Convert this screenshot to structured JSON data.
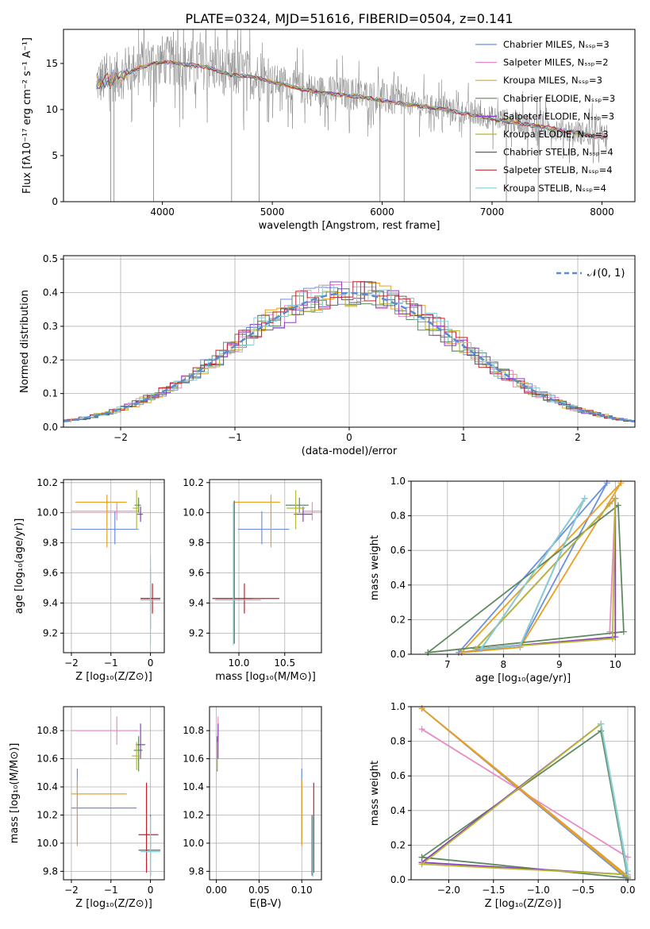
{
  "figure_title": "PLATE=0324, MJD=51616, FIBERID=0504, z=0.141",
  "series_colors": [
    "#6d8fe0",
    "#e88cc2",
    "#e8a020",
    "#5f8a5f",
    "#8a3fc4",
    "#b8b830",
    "#606060",
    "#c0202a",
    "#87cfd8"
  ],
  "chart_data": [
    {
      "id": "spectrum",
      "type": "line",
      "title": "PLATE=0324, MJD=51616, FIBERID=0504, z=0.141",
      "xlabel": "wavelength [Angstrom, rest frame]",
      "ylabel": "Flux [fλ10⁻¹⁷ erg cm⁻² s⁻¹ A⁻¹]",
      "xlim": [
        3100,
        8300
      ],
      "ylim": [
        0,
        18.7
      ],
      "xticks": [
        4000,
        5000,
        6000,
        7000,
        8000
      ],
      "yticks": [
        0,
        5,
        10,
        15
      ],
      "grid": false,
      "legend_position": "top-right",
      "legend": [
        "Chabrier MILES, Nₛₛₚ=3",
        "Salpeter MILES, Nₛₛₚ=2",
        "Kroupa MILES, Nₛₛₚ=3",
        "Chabrier ELODIE, Nₛₛₚ=3",
        "Salpeter ELODIE, Nₛₛₚ=3",
        "Kroupa ELODIE, Nₛₛₚ=3",
        "Chabrier STELIB, Nₛₛₚ=4",
        "Salpeter STELIB, Nₛₛₚ=4",
        "Kroupa STELIB, Nₛₛₚ=4"
      ],
      "data_wavelength": [
        3400,
        3600,
        3800,
        4000,
        4200,
        4400,
        4600,
        4800,
        5000,
        5200,
        5400,
        5600,
        5800,
        6000,
        6200,
        6400,
        6600,
        6800,
        7000,
        7200,
        7400,
        7600,
        7800,
        8000
      ],
      "data_flux": [
        13.0,
        13.6,
        15.0,
        15.4,
        15.0,
        14.8,
        14.0,
        13.8,
        13.2,
        12.5,
        12.0,
        11.8,
        11.6,
        11.2,
        10.8,
        10.4,
        10.0,
        9.6,
        9.1,
        8.7,
        8.3,
        7.9,
        7.5,
        7.1
      ],
      "model_flux": [
        12.8,
        13.4,
        14.6,
        15.2,
        14.9,
        14.6,
        13.8,
        13.6,
        13.0,
        12.4,
        11.9,
        11.6,
        11.4,
        11.0,
        10.6,
        10.3,
        9.9,
        9.5,
        9.0,
        8.6,
        8.2,
        7.8,
        7.4,
        7.0
      ]
    },
    {
      "id": "residuals",
      "type": "line",
      "xlabel": "(data-model)/error",
      "ylabel": "Normed distribution",
      "xlim": [
        -2.5,
        2.5
      ],
      "ylim": [
        0,
        0.51
      ],
      "xticks": [
        -2,
        -1,
        0,
        1,
        2
      ],
      "xtick_labels": [
        "−2",
        "−1",
        "0",
        "1",
        "2"
      ],
      "yticks": [
        0.0,
        0.1,
        0.2,
        0.3,
        0.4,
        0.5
      ],
      "ytick_labels": [
        "0.0",
        "0.1",
        "0.2",
        "0.3",
        "0.4",
        "0.5"
      ],
      "grid": true,
      "legend_position": "top-right",
      "gaussian_label": "𝒩(0, 1)",
      "gaussian_mean": 0,
      "gaussian_sigma": 1
    },
    {
      "id": "age_vs_Z",
      "type": "scatter",
      "xlabel": "Z [log₁₀(Z/Z⊙)]",
      "ylabel": "age  [log₁₀(age/yr)]",
      "xlim": [
        -2.2,
        0.35
      ],
      "ylim": [
        9.07,
        10.22
      ],
      "xticks": [
        -2,
        -1,
        0
      ],
      "xtick_labels": [
        "−2",
        "−1",
        "0"
      ],
      "yticks": [
        9.2,
        9.4,
        9.6,
        9.8,
        10.0,
        10.2
      ],
      "ytick_labels": [
        "9.2",
        "9.4",
        "9.6",
        "9.8",
        "10.0",
        "10.2"
      ],
      "grid": true,
      "points": [
        {
          "x": -0.9,
          "y": 9.89,
          "xerr": [
            1.1,
            0.6
          ],
          "yerr": [
            0.1,
            0.12
          ],
          "series": 0
        },
        {
          "x": -0.85,
          "y": 10.01,
          "xerr": [
            1.15,
            0.55
          ],
          "yerr": [
            0.06,
            0.06
          ],
          "series": 1
        },
        {
          "x": -1.1,
          "y": 10.07,
          "xerr": [
            0.8,
            0.5
          ],
          "yerr": [
            0.3,
            0.05
          ],
          "series": 2
        },
        {
          "x": -0.3,
          "y": 10.05,
          "xerr": [
            0.1,
            0.06
          ],
          "yerr": [
            0.05,
            0.05
          ],
          "series": 3
        },
        {
          "x": -0.25,
          "y": 9.99,
          "xerr": [
            0.1,
            0.06
          ],
          "yerr": [
            0.05,
            0.05
          ],
          "series": 4
        },
        {
          "x": -0.35,
          "y": 10.03,
          "xerr": [
            0.1,
            0.06
          ],
          "yerr": [
            0.14,
            0.12
          ],
          "series": 5
        },
        {
          "x": 0.0,
          "y": 9.43,
          "xerr": [
            0.25,
            0.25
          ],
          "yerr": [
            0.2,
            0.2
          ],
          "series": 6
        },
        {
          "x": 0.05,
          "y": 9.43,
          "xerr": [
            0.3,
            0.2
          ],
          "yerr": [
            0.1,
            0.1
          ],
          "series": 7
        },
        {
          "x": 0.0,
          "y": 9.42,
          "xerr": [
            0.25,
            0.25
          ],
          "yerr": [
            0.3,
            0.3
          ],
          "series": 8
        }
      ]
    },
    {
      "id": "age_vs_mass",
      "type": "scatter",
      "xlabel": "mass [log₁₀(M/M⊙)]",
      "ylabel": "",
      "xlim": [
        9.68,
        10.9
      ],
      "ylim": [
        9.07,
        10.22
      ],
      "xticks": [
        10.0,
        10.5
      ],
      "xtick_labels": [
        "10.0",
        "10.5"
      ],
      "yticks": [
        9.2,
        9.4,
        9.6,
        9.8,
        10.0,
        10.2
      ],
      "ytick_labels": [
        "9.2",
        "9.4",
        "9.6",
        "9.8",
        "10.0",
        "10.2"
      ],
      "grid": true,
      "points": [
        {
          "x": 10.25,
          "y": 9.89,
          "xerr": [
            0.26,
            0.3
          ],
          "yerr": [
            0.1,
            0.12
          ],
          "series": 0
        },
        {
          "x": 10.8,
          "y": 10.01,
          "xerr": [
            0.1,
            0.1
          ],
          "yerr": [
            0.06,
            0.06
          ],
          "series": 1
        },
        {
          "x": 10.35,
          "y": 10.07,
          "xerr": [
            0.4,
            0.1
          ],
          "yerr": [
            0.3,
            0.05
          ],
          "series": 2
        },
        {
          "x": 10.66,
          "y": 10.05,
          "xerr": [
            0.15,
            0.1
          ],
          "yerr": [
            0.05,
            0.05
          ],
          "series": 3
        },
        {
          "x": 10.7,
          "y": 9.99,
          "xerr": [
            0.1,
            0.1
          ],
          "yerr": [
            0.05,
            0.05
          ],
          "series": 4
        },
        {
          "x": 10.62,
          "y": 10.03,
          "xerr": [
            0.1,
            0.1
          ],
          "yerr": [
            0.14,
            0.12
          ],
          "series": 5
        },
        {
          "x": 9.95,
          "y": 9.43,
          "xerr": [
            0.2,
            0.2
          ],
          "yerr": [
            0.3,
            0.65
          ],
          "series": 6
        },
        {
          "x": 10.06,
          "y": 9.43,
          "xerr": [
            0.35,
            0.38
          ],
          "yerr": [
            0.1,
            0.1
          ],
          "series": 7
        },
        {
          "x": 9.94,
          "y": 9.42,
          "xerr": [
            0.2,
            0.3
          ],
          "yerr": [
            0.3,
            0.65
          ],
          "series": 8
        }
      ]
    },
    {
      "id": "weight_vs_age",
      "type": "line",
      "xlabel": "age  [log₁₀(age/yr)]",
      "ylabel": "mass weight",
      "xlim": [
        6.35,
        10.35
      ],
      "ylim": [
        0,
        1.0
      ],
      "xticks": [
        7,
        8,
        9,
        10
      ],
      "xtick_labels": [
        "7",
        "8",
        "9",
        "10"
      ],
      "yticks": [
        0.0,
        0.2,
        0.4,
        0.6,
        0.8,
        1.0
      ],
      "ytick_labels": [
        "0.0",
        "0.2",
        "0.4",
        "0.6",
        "0.8",
        "1.0"
      ],
      "grid": true,
      "series": [
        {
          "series": 0,
          "x": [
            7.2,
            9.85,
            8.3,
            7.2
          ],
          "y": [
            0.01,
            0.99,
            0.05,
            0.01
          ]
        },
        {
          "series": 1,
          "x": [
            9.9,
            10.0,
            9.9
          ],
          "y": [
            0.87,
            0.9,
            0.13
          ]
        },
        {
          "series": 2,
          "x": [
            7.25,
            10.1,
            8.3,
            7.25
          ],
          "y": [
            0.01,
            0.99,
            0.04,
            0.01
          ]
        },
        {
          "series": 3,
          "x": [
            6.65,
            10.05,
            10.15,
            6.65
          ],
          "y": [
            0.01,
            0.86,
            0.13,
            0.01
          ]
        },
        {
          "series": 4,
          "x": [
            7.5,
            10.0,
            10.0,
            7.5
          ],
          "y": [
            0.03,
            0.9,
            0.1,
            0.03
          ]
        },
        {
          "series": 5,
          "x": [
            7.5,
            10.0,
            9.95,
            7.5
          ],
          "y": [
            0.03,
            0.9,
            0.09,
            0.03
          ]
        },
        {
          "series": 6,
          "x": [
            7.6,
            9.45,
            8.3,
            7.6
          ],
          "y": [
            0.03,
            0.9,
            0.05,
            0.03
          ]
        },
        {
          "series": 8,
          "x": [
            7.6,
            9.45,
            8.3,
            7.6
          ],
          "y": [
            0.03,
            0.9,
            0.05,
            0.03
          ]
        }
      ]
    },
    {
      "id": "mass_vs_Z",
      "type": "scatter",
      "xlabel": "Z [log₁₀(Z/Z⊙)]",
      "ylabel": "mass [log₁₀(M/M⊙)]",
      "xlim": [
        -2.2,
        0.35
      ],
      "ylim": [
        9.74,
        10.97
      ],
      "xticks": [
        -2,
        -1,
        0
      ],
      "xtick_labels": [
        "−2",
        "−1",
        "0"
      ],
      "yticks": [
        9.8,
        10.0,
        10.2,
        10.4,
        10.6,
        10.8
      ],
      "ytick_labels": [
        "9.8",
        "10.0",
        "10.2",
        "10.4",
        "10.6",
        "10.8"
      ],
      "grid": true,
      "points": [
        {
          "x": -1.85,
          "y": 10.25,
          "xerr": [
            0.15,
            1.5
          ],
          "yerr": [
            0.25,
            0.28
          ],
          "series": 0
        },
        {
          "x": -0.85,
          "y": 10.8,
          "xerr": [
            1.15,
            0.55
          ],
          "yerr": [
            0.1,
            0.1
          ],
          "series": 1
        },
        {
          "x": -1.85,
          "y": 10.35,
          "xerr": [
            0.15,
            1.25
          ],
          "yerr": [
            0.37,
            0.1
          ],
          "series": 2
        },
        {
          "x": -0.3,
          "y": 10.66,
          "xerr": [
            0.12,
            0.1
          ],
          "yerr": [
            0.15,
            0.1
          ],
          "series": 3
        },
        {
          "x": -0.25,
          "y": 10.7,
          "xerr": [
            0.12,
            0.12
          ],
          "yerr": [
            0.1,
            0.15
          ],
          "series": 4
        },
        {
          "x": -0.35,
          "y": 10.62,
          "xerr": [
            0.12,
            0.12
          ],
          "yerr": [
            0.1,
            0.1
          ],
          "series": 5
        },
        {
          "x": 0.0,
          "y": 9.95,
          "xerr": [
            0.3,
            0.25
          ],
          "yerr": [
            0.18,
            0.25
          ],
          "series": 6
        },
        {
          "x": -0.1,
          "y": 10.06,
          "xerr": [
            0.2,
            0.3
          ],
          "yerr": [
            0.27,
            0.37
          ],
          "series": 7
        },
        {
          "x": 0.0,
          "y": 9.94,
          "xerr": [
            0.25,
            0.25
          ],
          "yerr": [
            0.18,
            0.25
          ],
          "series": 8
        }
      ]
    },
    {
      "id": "mass_vs_ebv",
      "type": "scatter",
      "xlabel": "E(B-V)",
      "ylabel": "",
      "xlim": [
        -0.008,
        0.123
      ],
      "ylim": [
        9.74,
        10.97
      ],
      "xticks": [
        0.0,
        0.05,
        0.1
      ],
      "xtick_labels": [
        "0.00",
        "0.05",
        "0.10"
      ],
      "yticks": [
        9.8,
        10.0,
        10.2,
        10.4,
        10.6,
        10.8
      ],
      "ytick_labels": [
        "9.8",
        "10.0",
        "10.2",
        "10.4",
        "10.6",
        "10.8"
      ],
      "grid": true,
      "points": [
        {
          "x": 0.1,
          "y": 10.25,
          "xerr": [
            0,
            0
          ],
          "yerr": [
            0.25,
            0.28
          ],
          "series": 0
        },
        {
          "x": 0.002,
          "y": 10.8,
          "xerr": [
            0,
            0
          ],
          "yerr": [
            0.1,
            0.1
          ],
          "series": 1
        },
        {
          "x": 0.1,
          "y": 10.35,
          "xerr": [
            0,
            0
          ],
          "yerr": [
            0.37,
            0.1
          ],
          "series": 2
        },
        {
          "x": 0.001,
          "y": 10.66,
          "xerr": [
            0,
            0
          ],
          "yerr": [
            0.15,
            0.1
          ],
          "series": 3
        },
        {
          "x": 0.002,
          "y": 10.7,
          "xerr": [
            0,
            0
          ],
          "yerr": [
            0.1,
            0.15
          ],
          "series": 4
        },
        {
          "x": 0.001,
          "y": 10.62,
          "xerr": [
            0,
            0
          ],
          "yerr": [
            0.1,
            0.1
          ],
          "series": 5
        },
        {
          "x": 0.112,
          "y": 9.95,
          "xerr": [
            0,
            0
          ],
          "yerr": [
            0.18,
            0.25
          ],
          "series": 6
        },
        {
          "x": 0.114,
          "y": 10.06,
          "xerr": [
            0,
            0
          ],
          "yerr": [
            0.27,
            0.37
          ],
          "series": 7
        },
        {
          "x": 0.113,
          "y": 9.94,
          "xerr": [
            0,
            0
          ],
          "yerr": [
            0.18,
            0.25
          ],
          "series": 8
        }
      ]
    },
    {
      "id": "weight_vs_Z",
      "type": "line",
      "xlabel": "Z [log₁₀(Z/Z⊙)]",
      "ylabel": "mass weight",
      "xlim": [
        -2.42,
        0.08
      ],
      "ylim": [
        0,
        1.0
      ],
      "xticks": [
        -2.0,
        -1.5,
        -1.0,
        -0.5,
        0.0
      ],
      "xtick_labels": [
        "−2.0",
        "−1.5",
        "−1.0",
        "−0.5",
        "0.0"
      ],
      "yticks": [
        0.0,
        0.2,
        0.4,
        0.6,
        0.8,
        1.0
      ],
      "ytick_labels": [
        "0.0",
        "0.2",
        "0.4",
        "0.6",
        "0.8",
        "1.0"
      ],
      "grid": true,
      "series": [
        {
          "series": 0,
          "x": [
            -2.3,
            -0.02,
            -0.02,
            -2.3
          ],
          "y": [
            0.99,
            0.01,
            0.03,
            0.99
          ]
        },
        {
          "series": 1,
          "x": [
            -2.3,
            0.0,
            -2.3
          ],
          "y": [
            0.87,
            0.13,
            0.87
          ]
        },
        {
          "series": 2,
          "x": [
            -2.3,
            0.0,
            0.0,
            -2.3
          ],
          "y": [
            0.99,
            0.01,
            0.02,
            0.99
          ]
        },
        {
          "series": 3,
          "x": [
            -2.3,
            -0.3,
            0.0,
            -2.3
          ],
          "y": [
            0.13,
            0.86,
            0.01,
            0.13
          ]
        },
        {
          "series": 4,
          "x": [
            -2.3,
            -0.3,
            0.0,
            -2.3
          ],
          "y": [
            0.1,
            0.9,
            0.03,
            0.1
          ]
        },
        {
          "series": 5,
          "x": [
            -2.3,
            -0.3,
            0.0,
            -2.3
          ],
          "y": [
            0.09,
            0.9,
            0.03,
            0.09
          ]
        },
        {
          "series": 8,
          "x": [
            -0.3,
            0.0,
            0.0,
            -0.3
          ],
          "y": [
            0.9,
            0.05,
            0.03,
            0.9
          ]
        }
      ]
    }
  ]
}
